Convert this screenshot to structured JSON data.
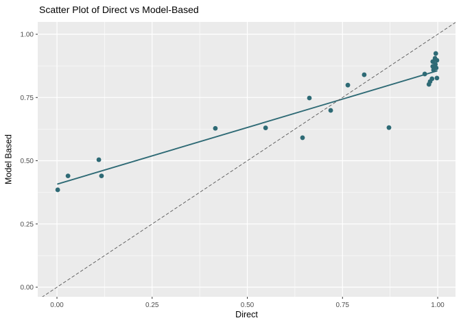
{
  "window": {
    "background": "#ffffff"
  },
  "chart_data": {
    "type": "scatter",
    "title": "Scatter Plot of Direct vs Model-Based",
    "xlabel": "Direct",
    "ylabel": "Model Based",
    "legend": "none",
    "grid": true,
    "xlim": [
      -0.0505,
      1.0468
    ],
    "ylim": [
      -0.0379,
      1.0488
    ],
    "x_ticks": {
      "values": [
        0,
        0.25,
        0.5,
        0.75,
        1.0
      ],
      "labels": [
        "0.00",
        "0.25",
        "0.50",
        "0.75",
        "1.00"
      ]
    },
    "y_ticks": {
      "values": [
        0,
        0.25,
        0.5,
        0.75,
        1.0
      ],
      "labels": [
        "0.00",
        "0.25",
        "0.50",
        "0.75",
        "1.00"
      ]
    },
    "x_minor": [
      0.125,
      0.375,
      0.625,
      0.875
    ],
    "y_minor": [
      0.125,
      0.375,
      0.625,
      0.875
    ],
    "series": [
      {
        "name": "observations",
        "kind": "points",
        "color": "#2e6a75",
        "data": [
          [
            0.002,
            0.385
          ],
          [
            0.029,
            0.44
          ],
          [
            0.11,
            0.504
          ],
          [
            0.117,
            0.44
          ],
          [
            0.416,
            0.628
          ],
          [
            0.548,
            0.63
          ],
          [
            0.645,
            0.591
          ],
          [
            0.663,
            0.748
          ],
          [
            0.719,
            0.699
          ],
          [
            0.764,
            0.799
          ],
          [
            0.807,
            0.84
          ],
          [
            0.872,
            0.631
          ],
          [
            0.966,
            0.843
          ],
          [
            0.995,
            0.924
          ],
          [
            0.993,
            0.905
          ],
          [
            0.998,
            0.897
          ],
          [
            0.987,
            0.892
          ],
          [
            0.994,
            0.881
          ],
          [
            0.987,
            0.873
          ],
          [
            0.996,
            0.867
          ],
          [
            0.989,
            0.859
          ],
          [
            0.998,
            0.827
          ],
          [
            0.985,
            0.824
          ],
          [
            0.98,
            0.813
          ],
          [
            0.977,
            0.802
          ]
        ]
      },
      {
        "name": "fit-line",
        "kind": "line",
        "color": "#2e6a75",
        "data": [
          [
            0.002,
            0.408
          ],
          [
            0.998,
            0.855
          ]
        ]
      },
      {
        "name": "identity-line",
        "kind": "dashed-line",
        "color": "#555555",
        "data": [
          [
            -0.0505,
            -0.0505
          ],
          [
            1.0488,
            1.0488
          ]
        ]
      }
    ],
    "styles": {
      "panel_bg": "#ebebeb",
      "grid_color": "#ffffff",
      "tick_label_color": "#4d4d4d",
      "tick_mark_color": "#333333",
      "point_color": "#2e6a75",
      "point_radius": 3.4
    }
  }
}
